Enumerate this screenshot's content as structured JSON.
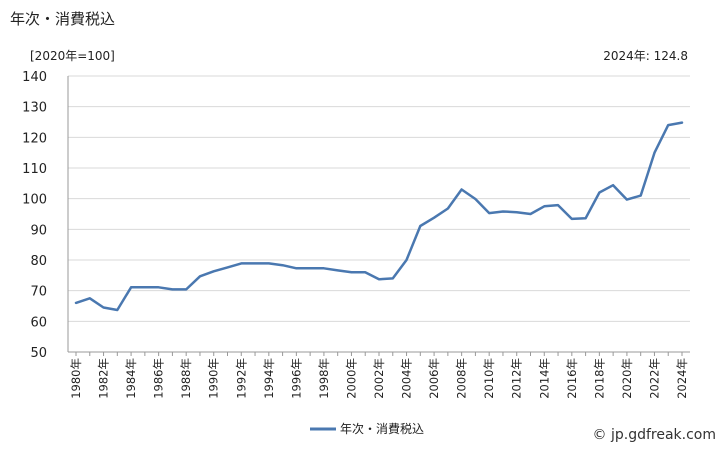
{
  "header": {
    "title": "年次・消費税込",
    "unit": "[2020年=100]",
    "latest": "2024年: 124.8"
  },
  "footer": {
    "credit": "© jp.gdfreak.com"
  },
  "colors": {
    "series": "#4a78b0",
    "grid": "#d9d9d9",
    "axis": "#999999"
  },
  "chart_data": {
    "type": "line",
    "title": "年次・消費税込",
    "ylabel": "[2020年=100]",
    "ylim": [
      50,
      140
    ],
    "yticks": [
      50,
      60,
      70,
      80,
      90,
      100,
      110,
      120,
      130,
      140
    ],
    "grid": true,
    "legend_position": "bottom",
    "x": [
      1980,
      1981,
      1982,
      1983,
      1984,
      1985,
      1986,
      1987,
      1988,
      1989,
      1990,
      1991,
      1992,
      1993,
      1994,
      1995,
      1996,
      1997,
      1998,
      1999,
      2000,
      2001,
      2002,
      2003,
      2004,
      2005,
      2006,
      2007,
      2008,
      2009,
      2010,
      2011,
      2012,
      2013,
      2014,
      2015,
      2016,
      2017,
      2018,
      2019,
      2020,
      2021,
      2022,
      2023,
      2024
    ],
    "xtick_labels": [
      "1980年",
      "1982年",
      "1984年",
      "1986年",
      "1988年",
      "1990年",
      "1992年",
      "1994年",
      "1996年",
      "1998年",
      "2000年",
      "2002年",
      "2004年",
      "2006年",
      "2008年",
      "2010年",
      "2012年",
      "2014年",
      "2016年",
      "2018年",
      "2020年",
      "2022年",
      "2024年"
    ],
    "series": [
      {
        "name": "年次・消費税込",
        "values": [
          66.0,
          67.5,
          64.5,
          63.7,
          71.1,
          71.1,
          71.1,
          70.4,
          70.4,
          74.7,
          76.3,
          77.6,
          78.9,
          78.9,
          78.9,
          78.3,
          77.3,
          77.3,
          77.3,
          76.6,
          76.0,
          76.0,
          73.7,
          74.0,
          80.0,
          91.1,
          93.8,
          96.8,
          103.0,
          99.9,
          95.3,
          95.8,
          95.6,
          95.0,
          97.5,
          97.9,
          93.4,
          93.6,
          102.0,
          104.4,
          99.7,
          101.0,
          115.0,
          124.0,
          124.8
        ]
      }
    ]
  }
}
